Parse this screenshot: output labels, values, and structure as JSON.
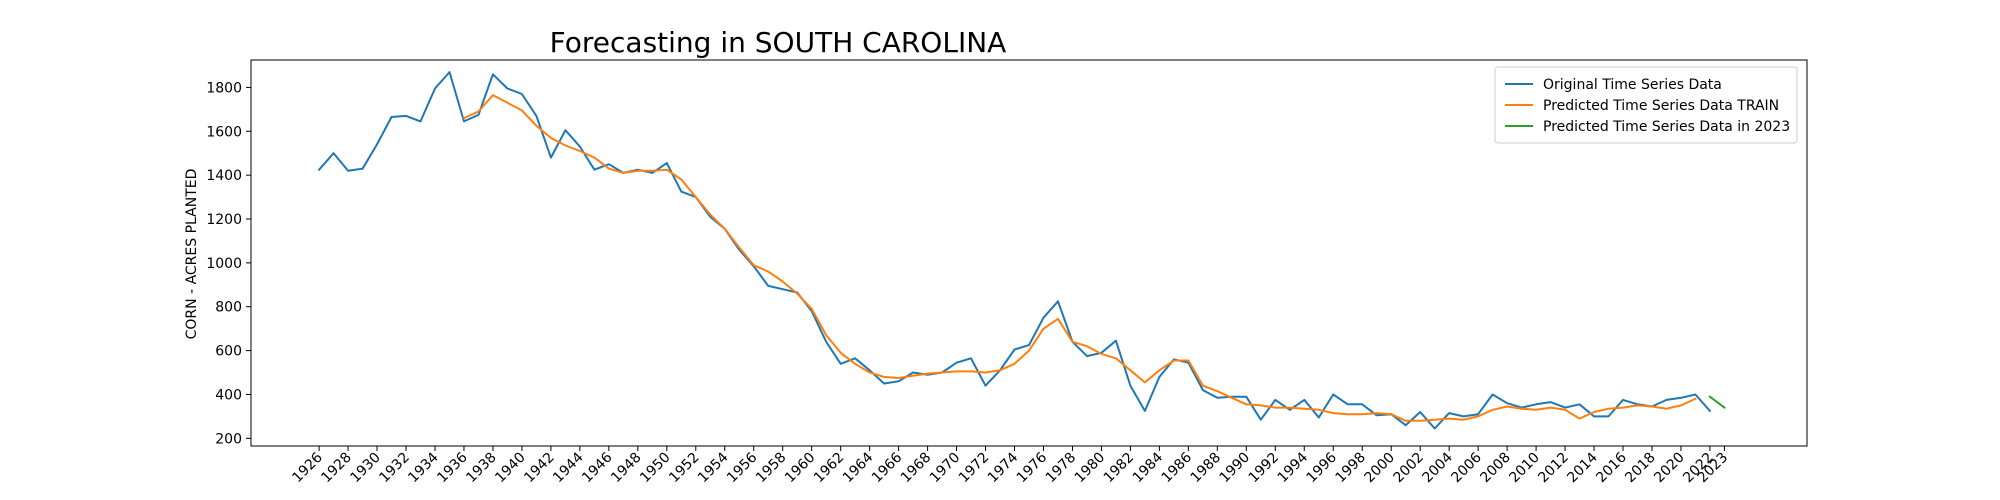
{
  "chart_data": {
    "type": "line",
    "title": "Forecasting in SOUTH CAROLINA",
    "xlabel": "",
    "ylabel": "CORN - ACRES PLANTED",
    "xlim": [
      1921.3,
      2028.7
    ],
    "ylim": [
      165,
      1925
    ],
    "x_ticks": [
      "1926",
      "1928",
      "1930",
      "1932",
      "1934",
      "1936",
      "1938",
      "1940",
      "1942",
      "1944",
      "1946",
      "1948",
      "1950",
      "1952",
      "1954",
      "1956",
      "1958",
      "1960",
      "1962",
      "1964",
      "1966",
      "1968",
      "1970",
      "1972",
      "1974",
      "1976",
      "1978",
      "1980",
      "1982",
      "1984",
      "1986",
      "1988",
      "1990",
      "1992",
      "1994",
      "1996",
      "1998",
      "2000",
      "2002",
      "2004",
      "2006",
      "2008",
      "2010",
      "2012",
      "2014",
      "2016",
      "2018",
      "2020",
      "2022",
      "2023"
    ],
    "y_ticks": [
      200,
      400,
      600,
      800,
      1000,
      1200,
      1400,
      1600,
      1800
    ],
    "legend_position": "upper right",
    "series": [
      {
        "name": "Original Time Series Data",
        "color": "#1f77b4",
        "x": [
          1926,
          1927,
          1928,
          1929,
          1930,
          1931,
          1932,
          1933,
          1934,
          1935,
          1936,
          1937,
          1938,
          1939,
          1940,
          1941,
          1942,
          1943,
          1944,
          1945,
          1946,
          1947,
          1948,
          1949,
          1950,
          1951,
          1952,
          1953,
          1954,
          1955,
          1956,
          1957,
          1958,
          1959,
          1960,
          1961,
          1962,
          1963,
          1964,
          1965,
          1966,
          1967,
          1968,
          1969,
          1970,
          1971,
          1972,
          1973,
          1974,
          1975,
          1976,
          1977,
          1978,
          1979,
          1980,
          1981,
          1982,
          1983,
          1984,
          1985,
          1986,
          1987,
          1988,
          1989,
          1990,
          1991,
          1992,
          1993,
          1994,
          1995,
          1996,
          1997,
          1998,
          1999,
          2000,
          2001,
          2002,
          2003,
          2004,
          2005,
          2006,
          2007,
          2008,
          2009,
          2010,
          2011,
          2012,
          2013,
          2014,
          2015,
          2016,
          2017,
          2018,
          2019,
          2020,
          2021,
          2022
        ],
        "values": [
          1425,
          1500,
          1420,
          1430,
          1540,
          1665,
          1670,
          1645,
          1795,
          1870,
          1645,
          1675,
          1860,
          1795,
          1770,
          1670,
          1480,
          1605,
          1530,
          1425,
          1450,
          1410,
          1425,
          1410,
          1455,
          1325,
          1300,
          1210,
          1155,
          1060,
          985,
          895,
          880,
          865,
          780,
          640,
          540,
          565,
          510,
          450,
          460,
          500,
          490,
          500,
          545,
          565,
          440,
          510,
          605,
          625,
          750,
          825,
          640,
          575,
          590,
          645,
          440,
          325,
          480,
          560,
          545,
          420,
          385,
          390,
          390,
          285,
          375,
          330,
          375,
          295,
          400,
          355,
          355,
          305,
          310,
          260,
          320,
          245,
          315,
          300,
          310,
          400,
          360,
          340,
          355,
          365,
          340,
          355,
          300,
          300,
          375,
          355,
          345,
          375,
          385,
          400,
          325
        ]
      },
      {
        "name": "Predicted Time Series Data TRAIN",
        "color": "#ff7f0e",
        "x": [
          1936,
          1937,
          1938,
          1939,
          1940,
          1941,
          1942,
          1943,
          1944,
          1945,
          1946,
          1947,
          1948,
          1949,
          1950,
          1951,
          1952,
          1953,
          1954,
          1955,
          1956,
          1957,
          1958,
          1959,
          1960,
          1961,
          1962,
          1963,
          1964,
          1965,
          1966,
          1967,
          1968,
          1969,
          1970,
          1971,
          1972,
          1973,
          1974,
          1975,
          1976,
          1977,
          1978,
          1979,
          1980,
          1981,
          1982,
          1983,
          1984,
          1985,
          1986,
          1987,
          1988,
          1989,
          1990,
          1991,
          1992,
          1993,
          1994,
          1995,
          1996,
          1997,
          1998,
          1999,
          2000,
          2001,
          2002,
          2003,
          2004,
          2005,
          2006,
          2007,
          2008,
          2009,
          2010,
          2011,
          2012,
          2013,
          2014,
          2015,
          2016,
          2017,
          2018,
          2019,
          2020,
          2021
        ],
        "values": [
          1660,
          1690,
          1765,
          1730,
          1695,
          1625,
          1570,
          1535,
          1510,
          1480,
          1430,
          1410,
          1420,
          1420,
          1425,
          1380,
          1300,
          1220,
          1155,
          1070,
          990,
          960,
          915,
          860,
          790,
          670,
          590,
          540,
          500,
          480,
          475,
          485,
          495,
          500,
          505,
          505,
          500,
          510,
          540,
          600,
          700,
          745,
          640,
          620,
          585,
          565,
          510,
          455,
          510,
          555,
          555,
          440,
          415,
          385,
          355,
          350,
          340,
          340,
          335,
          330,
          315,
          310,
          310,
          315,
          310,
          280,
          280,
          285,
          290,
          285,
          300,
          330,
          345,
          335,
          330,
          340,
          330,
          290,
          320,
          335,
          340,
          350,
          345,
          335,
          350,
          380
        ]
      },
      {
        "name": "Predicted Time Series Data in 2023",
        "color": "#2ca02c",
        "x": [
          2022,
          2023
        ],
        "values": [
          390,
          340
        ]
      }
    ]
  }
}
